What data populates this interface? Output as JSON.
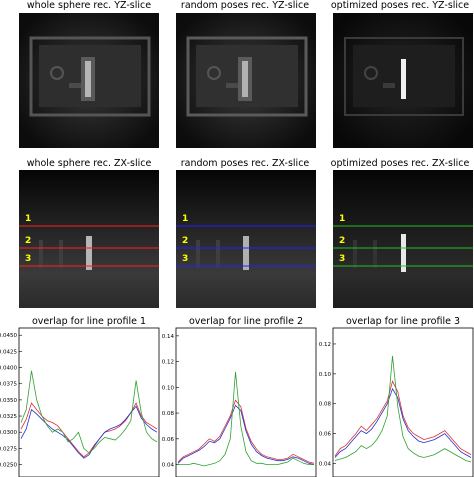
{
  "titles": {
    "yz_whole": "whole sphere rec. YZ-slice",
    "yz_random": "random poses rec. YZ-slice",
    "yz_optimized": "optimized poses rec. YZ-slice",
    "zx_whole": "whole sphere rec. ZX-slice",
    "zx_random": "random poses rec. ZX-slice",
    "zx_optimized": "optimized poses rec. ZX-slice",
    "profile1": "overlap for line profile 1",
    "profile2": "overlap for line profile 2",
    "profile3": "overlap for line profile 3"
  },
  "line_labels": [
    "1",
    "2",
    "3"
  ],
  "line_colors": {
    "whole": "#ff2020",
    "random": "#2020ff",
    "optimized": "#20c020"
  },
  "curve_colors": {
    "whole": "#e03030",
    "random": "#2030d0",
    "optimized": "#30a030"
  },
  "chart_data": [
    {
      "type": "line",
      "title": "overlap for line profile 1",
      "yticks": [
        "0.0450",
        "0.0425",
        "0.0400",
        "0.0375",
        "0.0350",
        "0.0325",
        "0.0300",
        "0.0275",
        "0.0250"
      ],
      "ylim": [
        0.024,
        0.0455
      ],
      "x": [
        0,
        5,
        10,
        15,
        20,
        25,
        30,
        35,
        40,
        45,
        50,
        55,
        60,
        65,
        70,
        75,
        80,
        85,
        90,
        95,
        100,
        105,
        110,
        115,
        120,
        125,
        130
      ],
      "series": [
        {
          "key": "whole",
          "values": [
            0.0305,
            0.032,
            0.0345,
            0.0335,
            0.0325,
            0.0318,
            0.0315,
            0.031,
            0.03,
            0.029,
            0.028,
            0.027,
            0.0262,
            0.0268,
            0.028,
            0.029,
            0.03,
            0.0302,
            0.0305,
            0.031,
            0.0318,
            0.033,
            0.0345,
            0.0325,
            0.0315,
            0.031,
            0.0305
          ]
        },
        {
          "key": "random",
          "values": [
            0.029,
            0.0305,
            0.0335,
            0.0328,
            0.032,
            0.0312,
            0.0305,
            0.03,
            0.0295,
            0.0288,
            0.0278,
            0.0268,
            0.026,
            0.0265,
            0.0278,
            0.029,
            0.03,
            0.0305,
            0.0308,
            0.0312,
            0.032,
            0.033,
            0.034,
            0.0322,
            0.0312,
            0.0305,
            0.03
          ]
        },
        {
          "key": "optimized",
          "values": [
            0.0315,
            0.0335,
            0.0395,
            0.035,
            0.0325,
            0.031,
            0.03,
            0.0305,
            0.03,
            0.0285,
            0.029,
            0.03,
            0.0275,
            0.0268,
            0.0275,
            0.0285,
            0.0292,
            0.029,
            0.0288,
            0.0295,
            0.0305,
            0.0318,
            0.038,
            0.033,
            0.03,
            0.029,
            0.0285
          ]
        }
      ]
    },
    {
      "type": "line",
      "title": "overlap for line profile 2",
      "yticks": [
        "0.14",
        "0.12",
        "0.10",
        "0.08",
        "0.06",
        "0.04"
      ],
      "ylim": [
        0.035,
        0.143
      ],
      "x": [
        0,
        5,
        10,
        15,
        20,
        25,
        30,
        35,
        40,
        45,
        50,
        55,
        60,
        65,
        70,
        75,
        80,
        85,
        90,
        95,
        100,
        105,
        110,
        115,
        120,
        125,
        130
      ],
      "series": [
        {
          "key": "whole",
          "values": [
            0.042,
            0.046,
            0.048,
            0.05,
            0.052,
            0.056,
            0.06,
            0.058,
            0.062,
            0.07,
            0.078,
            0.09,
            0.085,
            0.068,
            0.058,
            0.052,
            0.048,
            0.046,
            0.045,
            0.044,
            0.044,
            0.045,
            0.048,
            0.046,
            0.044,
            0.042,
            0.041
          ]
        },
        {
          "key": "random",
          "values": [
            0.041,
            0.045,
            0.047,
            0.049,
            0.051,
            0.054,
            0.058,
            0.057,
            0.06,
            0.068,
            0.076,
            0.086,
            0.082,
            0.066,
            0.056,
            0.05,
            0.047,
            0.045,
            0.044,
            0.043,
            0.043,
            0.044,
            0.046,
            0.045,
            0.043,
            0.041,
            0.04
          ]
        },
        {
          "key": "optimized",
          "values": [
            0.04,
            0.04,
            0.04,
            0.041,
            0.04,
            0.039,
            0.04,
            0.041,
            0.043,
            0.048,
            0.06,
            0.112,
            0.07,
            0.05,
            0.043,
            0.041,
            0.041,
            0.04,
            0.04,
            0.04,
            0.041,
            0.042,
            0.045,
            0.043,
            0.041,
            0.04,
            0.04
          ]
        }
      ]
    },
    {
      "type": "line",
      "title": "overlap for line profile 3",
      "yticks": [
        "0.12",
        "0.10",
        "0.08",
        "0.06",
        "0.04"
      ],
      "ylim": [
        0.035,
        0.128
      ],
      "x": [
        0,
        5,
        10,
        15,
        20,
        25,
        30,
        35,
        40,
        45,
        50,
        55,
        60,
        65,
        70,
        75,
        80,
        85,
        90,
        95,
        100,
        105,
        110,
        115,
        120,
        125,
        130
      ],
      "series": [
        {
          "key": "whole",
          "values": [
            0.045,
            0.05,
            0.052,
            0.056,
            0.06,
            0.065,
            0.062,
            0.066,
            0.07,
            0.076,
            0.082,
            0.095,
            0.088,
            0.072,
            0.064,
            0.06,
            0.058,
            0.056,
            0.057,
            0.058,
            0.06,
            0.062,
            0.058,
            0.054,
            0.05,
            0.048,
            0.046
          ]
        },
        {
          "key": "random",
          "values": [
            0.044,
            0.048,
            0.05,
            0.054,
            0.058,
            0.062,
            0.06,
            0.063,
            0.068,
            0.074,
            0.08,
            0.09,
            0.084,
            0.07,
            0.062,
            0.058,
            0.055,
            0.054,
            0.055,
            0.056,
            0.058,
            0.06,
            0.056,
            0.052,
            0.048,
            0.046,
            0.044
          ]
        },
        {
          "key": "optimized",
          "values": [
            0.042,
            0.043,
            0.044,
            0.046,
            0.048,
            0.052,
            0.05,
            0.052,
            0.056,
            0.062,
            0.072,
            0.112,
            0.078,
            0.058,
            0.05,
            0.047,
            0.045,
            0.044,
            0.045,
            0.046,
            0.048,
            0.05,
            0.048,
            0.046,
            0.044,
            0.042,
            0.041
          ]
        }
      ]
    }
  ]
}
